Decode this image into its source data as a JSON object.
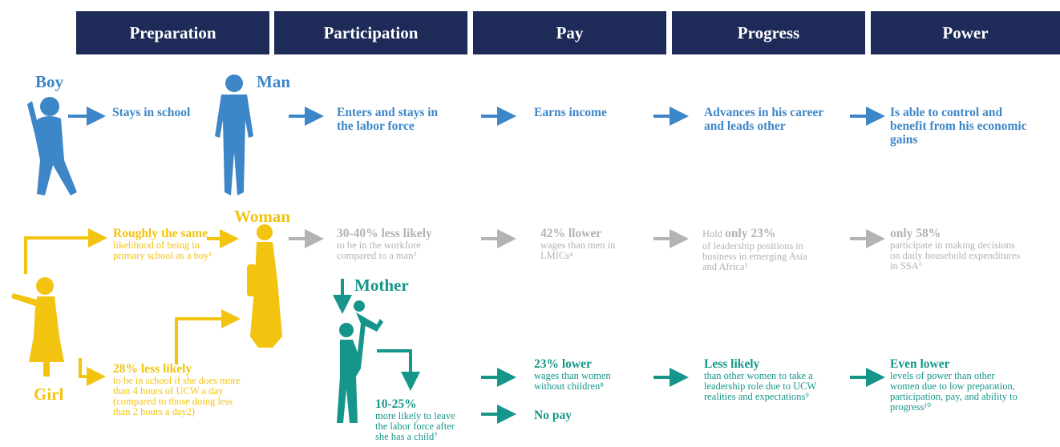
{
  "headers": [
    "Preparation",
    "Participation",
    "Pay",
    "Progress",
    "Power"
  ],
  "labels": {
    "boy": "Boy",
    "man": "Man",
    "woman": "Woman",
    "mother": "Mother",
    "girl": "Girl"
  },
  "boy_path": [
    "Stays in school",
    "Enters and stays in the labor force",
    "Earns income",
    "Advances in his career and leads other",
    "Is able to control and benefit from his economic gains"
  ],
  "woman_path": [
    {
      "bold": "Roughly the same",
      "text": "likelihood of being in primary school as a boy¹"
    },
    {
      "bold": "30-40% less likely",
      "text": "to be in the workfore compared to a man³"
    },
    {
      "bold": "42% llower",
      "text": "wages than men in LMICs⁴"
    },
    {
      "prefix": "Hold ",
      "bold": "only 23%",
      "text": "of leadership positions in business in emerging Asia and Africa⁵"
    },
    {
      "bold": "only 58%",
      "text": "participate in making decisions on daily household expenditures in SSA⁶"
    }
  ],
  "girl_school": {
    "bold": "28% less likely",
    "text": "to be in school if she does more than 4 hours of UCW a day (compared to those doing less than 2 hours a day2)"
  },
  "mother_path": {
    "leave": {
      "bold": "10-25%",
      "text": "more likely to leave the labor force after she has a child⁷"
    },
    "pay": {
      "bold": "23% lower",
      "text": "wages than women without children⁸"
    },
    "progress": {
      "bold": "Less likely",
      "text": "than other women to take a leadership role due to UCW realities and expectations⁹"
    },
    "power": {
      "bold": "Even lower",
      "text": "levels of power than other women due to low preparation, participation, pay, and ability to progress¹⁰"
    },
    "no_pay": "No pay"
  }
}
